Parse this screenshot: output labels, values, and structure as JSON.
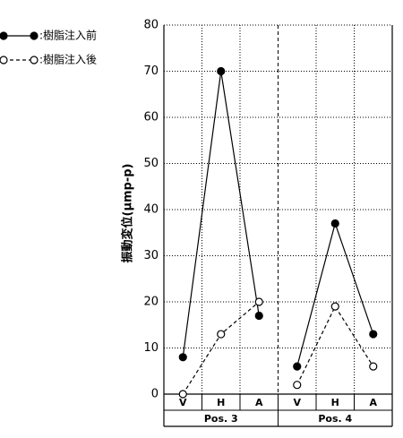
{
  "chart_data": {
    "type": "line",
    "y_label": "振動変位(μmp-p)",
    "categories": [
      "V",
      "H",
      "A",
      "V",
      "H",
      "A"
    ],
    "groups": [
      "Pos. 3",
      "Pos. 4"
    ],
    "series": [
      {
        "name": ":樹脂注入前",
        "color": "#000000",
        "marker": "filled",
        "dash": "solid",
        "values": [
          8,
          70,
          17,
          6,
          37,
          13
        ]
      },
      {
        "name": ":樹脂注入後",
        "color": "#000000",
        "marker": "open",
        "dash": "dashed",
        "values": [
          0,
          13,
          20,
          2,
          19,
          6
        ]
      }
    ],
    "ylim": [
      0,
      80
    ],
    "yticks": [
      0,
      10,
      20,
      30,
      40,
      50,
      60,
      70,
      80
    ],
    "grid": true,
    "legend": "top-left"
  }
}
